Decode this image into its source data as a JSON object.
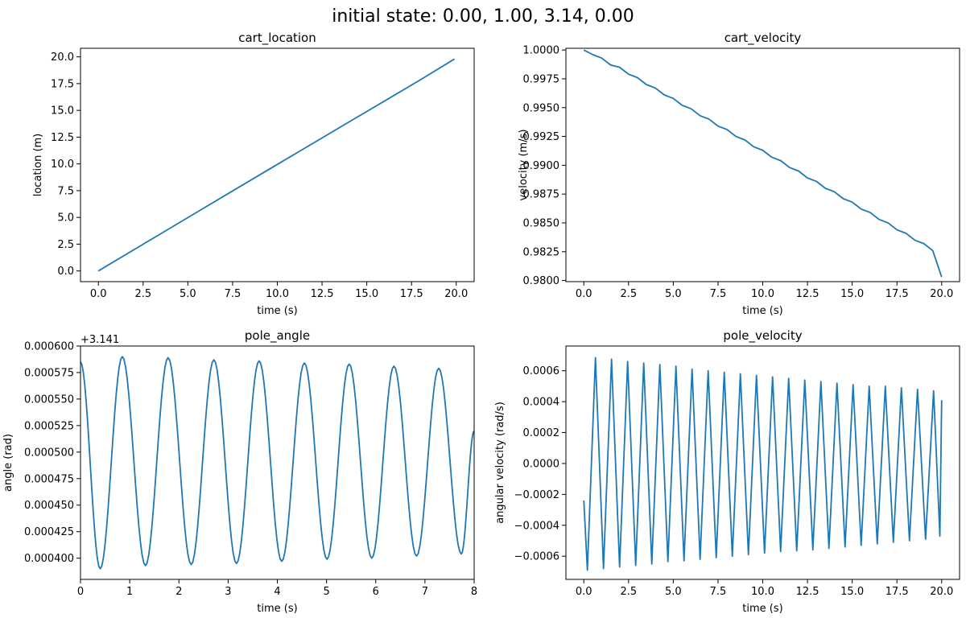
{
  "figure": {
    "suptitle": "initial state: 0.00, 1.00, 3.14, 0.00",
    "line_color": "#1f77b4"
  },
  "chart_data": [
    {
      "type": "line",
      "title": "cart_location",
      "xlabel": "time (s)",
      "ylabel": "location (m)",
      "xlim": [
        -1.0,
        21.0
      ],
      "ylim": [
        -1.0,
        20.8
      ],
      "xticks": [
        0.0,
        2.5,
        5.0,
        7.5,
        10.0,
        12.5,
        15.0,
        17.5,
        20.0
      ],
      "xtick_labels": [
        "0.0",
        "2.5",
        "5.0",
        "7.5",
        "10.0",
        "12.5",
        "15.0",
        "17.5",
        "20.0"
      ],
      "yticks": [
        0.0,
        2.5,
        5.0,
        7.5,
        10.0,
        12.5,
        15.0,
        17.5,
        20.0
      ],
      "ytick_labels": [
        "0.0",
        "2.5",
        "5.0",
        "7.5",
        "10.0",
        "12.5",
        "15.0",
        "17.5",
        "20.0"
      ],
      "series": [
        {
          "x": [
            0.0,
            2.0,
            4.0,
            6.0,
            8.0,
            10.0,
            12.0,
            14.0,
            16.0,
            18.0,
            19.9
          ],
          "y": [
            0.0,
            2.0,
            3.99,
            5.98,
            7.97,
            9.95,
            11.93,
            13.91,
            15.88,
            17.86,
            19.8
          ]
        }
      ]
    },
    {
      "type": "line",
      "title": "cart_velocity",
      "xlabel": "time (s)",
      "ylabel": "velocity (m/s)",
      "xlim": [
        -1.0,
        21.0
      ],
      "ylim": [
        0.9799,
        1.00015
      ],
      "xticks": [
        0.0,
        2.5,
        5.0,
        7.5,
        10.0,
        12.5,
        15.0,
        17.5,
        20.0
      ],
      "xtick_labels": [
        "0.0",
        "2.5",
        "5.0",
        "7.5",
        "10.0",
        "12.5",
        "15.0",
        "17.5",
        "20.0"
      ],
      "yticks": [
        0.98,
        0.9825,
        0.985,
        0.9875,
        0.99,
        0.9925,
        0.995,
        0.9975,
        1.0
      ],
      "ytick_labels": [
        "0.9800",
        "0.9825",
        "0.9850",
        "0.9875",
        "0.9900",
        "0.9925",
        "0.9950",
        "0.9975",
        "1.0000"
      ],
      "series": [
        {
          "x": [
            0.0,
            0.5,
            1.0,
            1.5,
            2.0,
            2.5,
            3.0,
            3.5,
            4.0,
            4.5,
            5.0,
            5.5,
            6.0,
            6.5,
            7.0,
            7.5,
            8.0,
            8.5,
            9.0,
            9.5,
            10.0,
            10.5,
            11.0,
            11.5,
            12.0,
            12.5,
            13.0,
            13.5,
            14.0,
            14.5,
            15.0,
            15.5,
            16.0,
            16.5,
            17.0,
            17.5,
            18.0,
            18.5,
            19.0,
            19.5,
            20.0
          ],
          "y": [
            1.0,
            0.9996,
            0.9993,
            0.9987,
            0.9985,
            0.9979,
            0.9976,
            0.997,
            0.9967,
            0.9961,
            0.9958,
            0.9952,
            0.9949,
            0.9943,
            0.994,
            0.9934,
            0.9931,
            0.9925,
            0.9922,
            0.9916,
            0.9913,
            0.9907,
            0.9904,
            0.9898,
            0.9895,
            0.9889,
            0.9886,
            0.988,
            0.9877,
            0.9871,
            0.9868,
            0.9862,
            0.9859,
            0.9853,
            0.985,
            0.9844,
            0.9841,
            0.9835,
            0.9832,
            0.9826,
            0.9803
          ]
        }
      ]
    },
    {
      "type": "line",
      "title": "pole_angle",
      "offset_label": "+3.141",
      "xlabel": "time (s)",
      "ylabel": "angle (rad)",
      "xlim": [
        0,
        8
      ],
      "ylim": [
        0.00038,
        0.0006
      ],
      "xticks": [
        0,
        1,
        2,
        3,
        4,
        5,
        6,
        7,
        8
      ],
      "xtick_labels": [
        "0",
        "1",
        "2",
        "3",
        "4",
        "5",
        "6",
        "7",
        "8"
      ],
      "yticks": [
        0.0004,
        0.000425,
        0.00045,
        0.000475,
        0.0005,
        0.000525,
        0.00055,
        0.000575,
        0.0006
      ],
      "ytick_labels": [
        "0.000400",
        "0.000425",
        "0.000450",
        "0.000475",
        "0.000500",
        "0.000525",
        "0.000550",
        "0.000575",
        "0.000600"
      ],
      "series": [
        {
          "x": [
            0.0,
            0.4,
            0.85,
            1.32,
            1.78,
            2.25,
            2.71,
            3.17,
            3.63,
            4.09,
            4.55,
            5.01,
            5.46,
            5.92,
            6.37,
            6.83,
            7.28,
            7.74,
            8.0
          ],
          "y": [
            0.000585,
            0.00039,
            0.00059,
            0.000393,
            0.000589,
            0.000394,
            0.000587,
            0.000395,
            0.000586,
            0.000397,
            0.000584,
            0.000399,
            0.000583,
            0.0004,
            0.000581,
            0.000402,
            0.000579,
            0.000404,
            0.00052
          ]
        }
      ]
    },
    {
      "type": "line",
      "title": "pole_velocity",
      "xlabel": "time (s)",
      "ylabel": "angular velocity (rad/s)",
      "xlim": [
        -1.0,
        21.0
      ],
      "ylim": [
        -0.00075,
        0.00076
      ],
      "xticks": [
        0.0,
        2.5,
        5.0,
        7.5,
        10.0,
        12.5,
        15.0,
        17.5,
        20.0
      ],
      "xtick_labels": [
        "0.0",
        "2.5",
        "5.0",
        "7.5",
        "10.0",
        "12.5",
        "15.0",
        "17.5",
        "20.0"
      ],
      "yticks": [
        -0.0006,
        -0.0004,
        -0.0002,
        0.0,
        0.0002,
        0.0004,
        0.0006
      ],
      "ytick_labels": [
        "−0.0006",
        "−0.0004",
        "−0.0002",
        "0.0000",
        "0.0002",
        "0.0004",
        "0.0006"
      ],
      "series": [
        {
          "x": [
            0.0,
            0.2,
            0.65,
            1.1,
            1.55,
            2.0,
            2.45,
            2.9,
            3.35,
            3.8,
            4.25,
            4.7,
            5.15,
            5.6,
            6.05,
            6.5,
            6.95,
            7.4,
            7.85,
            8.3,
            8.75,
            9.2,
            9.65,
            10.1,
            10.55,
            11.0,
            11.45,
            11.9,
            12.35,
            12.8,
            13.25,
            13.7,
            14.15,
            14.6,
            15.05,
            15.5,
            15.95,
            16.4,
            16.85,
            17.3,
            17.75,
            18.2,
            18.65,
            19.1,
            19.55,
            19.9,
            20.0
          ],
          "y": [
            -0.00024,
            -0.00069,
            0.000685,
            -0.00068,
            0.000675,
            -0.00067,
            0.00066,
            -0.00066,
            0.00065,
            -0.00065,
            0.00064,
            -0.000635,
            0.00063,
            -0.00063,
            0.00061,
            -0.00062,
            0.0006,
            -0.00061,
            0.00059,
            -0.0006,
            0.00058,
            -0.00059,
            0.00057,
            -0.00058,
            0.00056,
            -0.00057,
            0.00055,
            -0.000565,
            0.00054,
            -0.00056,
            0.00053,
            -0.00055,
            0.00052,
            -0.00054,
            0.00051,
            -0.00053,
            0.0005,
            -0.00052,
            0.0005,
            -0.00051,
            0.00049,
            -0.0005,
            0.00048,
            -0.00049,
            0.00047,
            -0.00047,
            0.00041
          ]
        }
      ]
    }
  ]
}
